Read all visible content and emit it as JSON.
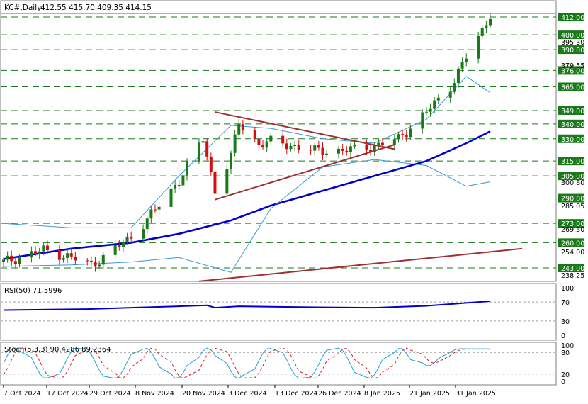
{
  "header": {
    "symbol_label": "KC#,Daily",
    "ohlc_label": "412.55 415.70 409.35 414.15"
  },
  "rsi": {
    "label": "RSI(50) 71.5996",
    "levels": [
      100,
      70,
      30,
      0
    ],
    "value_points": [
      {
        "date": "2024-10-07",
        "value": 53
      },
      {
        "date": "2024-10-28",
        "value": 55
      },
      {
        "date": "2024-11-08",
        "value": 58
      },
      {
        "date": "2024-11-20",
        "value": 61
      },
      {
        "date": "2024-11-27",
        "value": 63
      },
      {
        "date": "2024-11-29",
        "value": 58
      },
      {
        "date": "2024-12-05",
        "value": 61
      },
      {
        "date": "2024-12-13",
        "value": 60
      },
      {
        "date": "2024-12-24",
        "value": 59
      },
      {
        "date": "2025-01-08",
        "value": 58
      },
      {
        "date": "2025-01-21",
        "value": 62
      },
      {
        "date": "2025-01-31",
        "value": 68
      },
      {
        "date": "2025-02-06",
        "value": 71.6
      }
    ],
    "colors": {
      "line": "#0000cc",
      "level": "#a0a0a0"
    }
  },
  "stoch": {
    "label": "Stoch(5,3,3) 90.4286 89.2364",
    "levels": [
      100,
      80,
      20,
      0
    ],
    "colors": {
      "k_line": "#20a0d0",
      "d_line": "#d02020",
      "level": "#a0a0a0"
    }
  },
  "price_axis": {
    "grid_labels": [
      "412.00",
      "400.00",
      "390.00",
      "376.00",
      "365.00",
      "349.00",
      "340.00",
      "330.00",
      "315.00",
      "305.00",
      "290.00",
      "273.00",
      "260.00",
      "243.00"
    ],
    "minor_labels": [
      "395.30",
      "379.55",
      "300.80",
      "285.05",
      "269.30",
      "254.00",
      "238.25"
    ]
  },
  "x_axis": {
    "labels": [
      "7 Oct 2024",
      "17 Oct 2024",
      "29 Oct 2024",
      "8 Nov 2024",
      "20 Nov 2024",
      "3 Dec 2024",
      "13 Dec 2024",
      "26 Dec 2024",
      "8 Jan 2025",
      "21 Jan 2025",
      "31 Jan 2025"
    ]
  },
  "chart_data": {
    "type": "candlestick",
    "symbol": "KC#",
    "timeframe": "Daily",
    "last_bar": {
      "open": 412.55,
      "high": 415.7,
      "low": 409.35,
      "close": 414.15
    },
    "ylim": [
      234,
      418
    ],
    "grid_levels": [
      412,
      400,
      390,
      376,
      365,
      349,
      340,
      330,
      315,
      305,
      290,
      273,
      260,
      243
    ],
    "closes": [
      {
        "date": "2024-10-07",
        "close": 247
      },
      {
        "date": "2024-10-17",
        "close": 255
      },
      {
        "date": "2024-10-24",
        "close": 250
      },
      {
        "date": "2024-10-29",
        "close": 245
      },
      {
        "date": "2024-11-01",
        "close": 250
      },
      {
        "date": "2024-11-08",
        "close": 264
      },
      {
        "date": "2024-11-14",
        "close": 282
      },
      {
        "date": "2024-11-20",
        "close": 302
      },
      {
        "date": "2024-11-26",
        "close": 330
      },
      {
        "date": "2024-11-29",
        "close": 295
      },
      {
        "date": "2024-12-03",
        "close": 318
      },
      {
        "date": "2024-12-05",
        "close": 341
      },
      {
        "date": "2024-12-10",
        "close": 326
      },
      {
        "date": "2024-12-13",
        "close": 328
      },
      {
        "date": "2024-12-19",
        "close": 325
      },
      {
        "date": "2024-12-24",
        "close": 322
      },
      {
        "date": "2024-12-31",
        "close": 322
      },
      {
        "date": "2025-01-08",
        "close": 325
      },
      {
        "date": "2025-01-14",
        "close": 330
      },
      {
        "date": "2025-01-21",
        "close": 348
      },
      {
        "date": "2025-01-27",
        "close": 365
      },
      {
        "date": "2025-01-31",
        "close": 385
      },
      {
        "date": "2025-02-04",
        "close": 403
      },
      {
        "date": "2025-02-06",
        "close": 414.15
      }
    ],
    "series": [
      {
        "name": "MA blue",
        "color": "#0000cc",
        "points": [
          {
            "date": "2024-10-07",
            "value": 249
          },
          {
            "date": "2024-10-24",
            "value": 256
          },
          {
            "date": "2024-11-08",
            "value": 260
          },
          {
            "date": "2024-11-20",
            "value": 266
          },
          {
            "date": "2024-12-03",
            "value": 275
          },
          {
            "date": "2024-12-13",
            "value": 285
          },
          {
            "date": "2024-12-26",
            "value": 295
          },
          {
            "date": "2025-01-08",
            "value": 305
          },
          {
            "date": "2025-01-21",
            "value": 315
          },
          {
            "date": "2025-01-31",
            "value": 327
          },
          {
            "date": "2025-02-06",
            "value": 335
          }
        ]
      },
      {
        "name": "Bollinger upper",
        "color": "#3a9ad0",
        "points": [
          {
            "date": "2024-10-07",
            "value": 273
          },
          {
            "date": "2024-10-24",
            "value": 270
          },
          {
            "date": "2024-11-08",
            "value": 270
          },
          {
            "date": "2024-11-20",
            "value": 305
          },
          {
            "date": "2024-12-03",
            "value": 339
          },
          {
            "date": "2024-12-13",
            "value": 337
          },
          {
            "date": "2024-12-26",
            "value": 330
          },
          {
            "date": "2025-01-08",
            "value": 327
          },
          {
            "date": "2025-01-21",
            "value": 343
          },
          {
            "date": "2025-01-31",
            "value": 372
          },
          {
            "date": "2025-02-06",
            "value": 361
          }
        ]
      },
      {
        "name": "Bollinger lower",
        "color": "#3a9ad0",
        "points": [
          {
            "date": "2024-10-07",
            "value": 244
          },
          {
            "date": "2024-10-24",
            "value": 245
          },
          {
            "date": "2024-11-08",
            "value": 247
          },
          {
            "date": "2024-11-20",
            "value": 250
          },
          {
            "date": "2024-12-03",
            "value": 240
          },
          {
            "date": "2024-12-13",
            "value": 283
          },
          {
            "date": "2024-12-26",
            "value": 311
          },
          {
            "date": "2025-01-08",
            "value": 316
          },
          {
            "date": "2025-01-21",
            "value": 312
          },
          {
            "date": "2025-01-31",
            "value": 298
          },
          {
            "date": "2025-02-06",
            "value": 301
          }
        ]
      }
    ],
    "trendlines": [
      {
        "name": "triangle upper",
        "color": "#a03030",
        "from": {
          "date": "2024-11-29",
          "value": 348
        },
        "to": {
          "date": "2025-01-13",
          "value": 323
        }
      },
      {
        "name": "triangle lower",
        "color": "#a03030",
        "from": {
          "date": "2024-11-29",
          "value": 289
        },
        "to": {
          "date": "2025-01-13",
          "value": 326
        }
      },
      {
        "name": "long-term support",
        "color": "#a03030",
        "from": {
          "date": "2024-11-25",
          "value": 234
        },
        "to": {
          "date": "2025-02-14",
          "value": 256
        }
      }
    ]
  }
}
